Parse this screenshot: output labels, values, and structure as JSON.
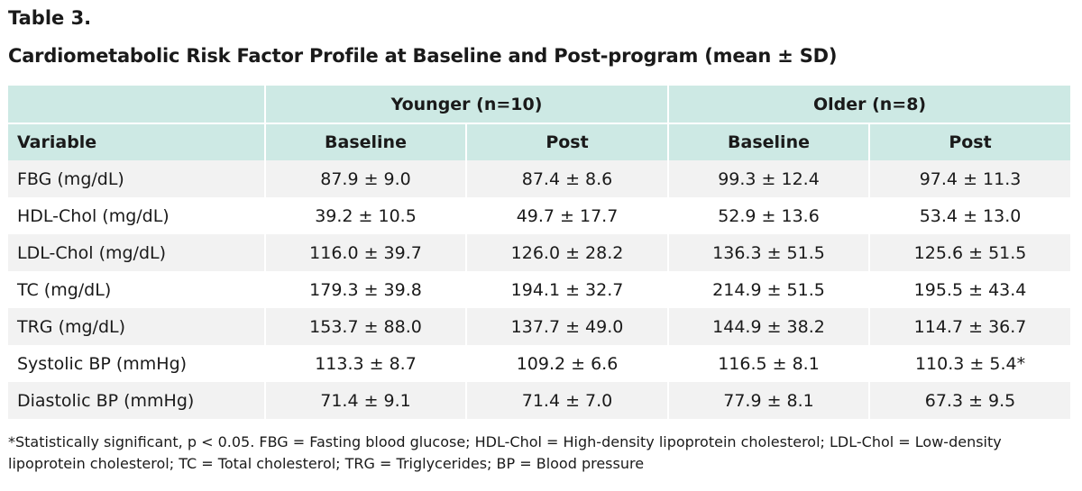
{
  "table_label": "Table 3.",
  "title": "Cardiometabolic Risk Factor Profile at Baseline and Post-program (mean ± SD)",
  "header": {
    "groups": [
      "Younger (n=10)",
      "Older (n=8)"
    ],
    "columns": [
      "Variable",
      "Baseline",
      "Post",
      "Baseline",
      "Post"
    ]
  },
  "rows": [
    [
      "FBG (mg/dL)",
      "87.9 ± 9.0",
      "87.4 ± 8.6",
      "99.3 ± 12.4",
      "97.4 ± 11.3"
    ],
    [
      "HDL-Chol (mg/dL)",
      "39.2 ± 10.5",
      "49.7 ± 17.7",
      "52.9 ± 13.6",
      "53.4 ± 13.0"
    ],
    [
      "LDL-Chol (mg/dL)",
      "116.0 ± 39.7",
      "126.0 ± 28.2",
      "136.3 ± 51.5",
      "125.6 ± 51.5"
    ],
    [
      "TC (mg/dL)",
      "179.3 ± 39.8",
      "194.1 ± 32.7",
      "214.9 ± 51.5",
      "195.5 ± 43.4"
    ],
    [
      "TRG (mg/dL)",
      "153.7 ± 88.0",
      "137.7 ± 49.0",
      "144.9 ± 38.2",
      "114.7 ± 36.7"
    ],
    [
      "Systolic BP (mmHg)",
      "113.3 ± 8.7",
      "109.2 ± 6.6",
      "116.5 ± 8.1",
      "110.3 ± 5.4*"
    ],
    [
      "Diastolic BP (mmHg)",
      "71.4 ± 9.1",
      "71.4 ± 7.0",
      "77.9 ± 8.1",
      "67.3 ± 9.5"
    ]
  ],
  "footnote": "*Statistically significant, p < 0.05. FBG = Fasting blood glucose; HDL-Chol = High-density lipoprotein cholesterol; LDL-Chol = Low-density lipoprotein cholesterol; TC = Total cholesterol; TRG = Triglycerides; BP = Blood pressure",
  "colors": {
    "header_bg": "#cde9e4",
    "stripe_bg": "#f2f2f2",
    "text": "#1a1a1a"
  }
}
